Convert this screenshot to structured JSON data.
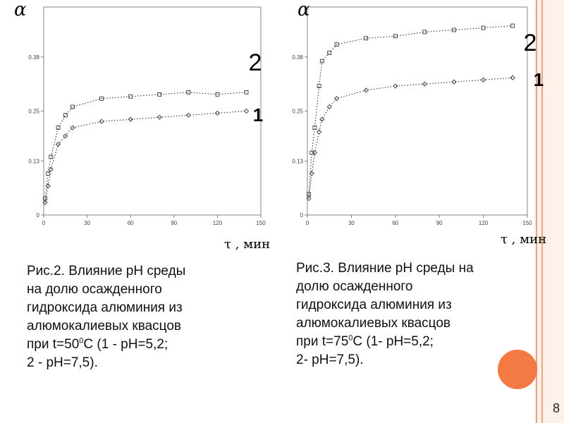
{
  "page": {
    "number": "8"
  },
  "charts": [
    {
      "y_symbol": "α",
      "x_label": "τ , мин",
      "y_ticks": [
        "0",
        "0.13",
        "0.25",
        "0.38"
      ],
      "x_ticks": [
        "0",
        "30",
        "60",
        "90",
        "120",
        "150"
      ],
      "curve_labels": [
        "2",
        "1"
      ]
    },
    {
      "y_symbol": "α",
      "x_label": "τ , мин",
      "y_ticks": [
        "0",
        "0.13",
        "0.25",
        "0.38"
      ],
      "x_ticks": [
        "0",
        "30",
        "60",
        "90",
        "120",
        "150"
      ],
      "curve_labels": [
        "2",
        "1"
      ]
    }
  ],
  "captions": [
    {
      "lines": [
        {
          "text": "Рис.2. Влияние рН среды"
        },
        {
          "text": "на долю осажденного"
        },
        {
          "text": "гидроксида алюминия из"
        },
        {
          "text": "алюмокалиевых квасцов"
        },
        {
          "pre": "при t=50",
          "sup": "0",
          "post": "С (1 - рН=5,2;"
        },
        {
          "text": "2 - рН=7,5)."
        }
      ]
    },
    {
      "lines": [
        {
          "text": "Рис.3. Влияние рН среды на"
        },
        {
          "text": "долю осажденного"
        },
        {
          "text": "гидроксида алюминия из"
        },
        {
          "text": "алюмокалиевых квасцов"
        },
        {
          "pre": "при t=75",
          "sup": "0",
          "post": "С (1- рН=5,2;"
        },
        {
          "text": "2- рН=7,5)."
        }
      ]
    }
  ],
  "chart_data": [
    {
      "type": "scatter",
      "x_label": "τ , мин",
      "y_label": "α",
      "xlim": [
        0,
        150
      ],
      "ylim": [
        0,
        0.5
      ],
      "x_ticks": [
        0,
        30,
        60,
        90,
        120,
        150
      ],
      "y_ticks": [
        0,
        0.13,
        0.25,
        0.38
      ],
      "grid": false,
      "series": [
        {
          "name": "2",
          "marker": "square",
          "x": [
            1,
            3,
            5,
            10,
            15,
            20,
            40,
            60,
            80,
            100,
            120,
            140
          ],
          "y": [
            0.04,
            0.1,
            0.14,
            0.21,
            0.24,
            0.26,
            0.28,
            0.285,
            0.29,
            0.295,
            0.29,
            0.295
          ]
        },
        {
          "name": "1",
          "marker": "diamond",
          "x": [
            1,
            3,
            5,
            10,
            15,
            20,
            40,
            60,
            80,
            100,
            120,
            140
          ],
          "y": [
            0.03,
            0.07,
            0.11,
            0.17,
            0.19,
            0.21,
            0.225,
            0.23,
            0.235,
            0.24,
            0.245,
            0.25
          ]
        }
      ]
    },
    {
      "type": "scatter",
      "x_label": "τ , мин",
      "y_label": "α",
      "xlim": [
        0,
        150
      ],
      "ylim": [
        0,
        0.5
      ],
      "x_ticks": [
        0,
        30,
        60,
        90,
        120,
        150
      ],
      "y_ticks": [
        0,
        0.13,
        0.25,
        0.38
      ],
      "grid": false,
      "series": [
        {
          "name": "2",
          "marker": "square",
          "x": [
            1,
            3,
            5,
            8,
            10,
            15,
            20,
            40,
            60,
            80,
            100,
            120,
            140
          ],
          "y": [
            0.05,
            0.15,
            0.21,
            0.31,
            0.37,
            0.39,
            0.41,
            0.425,
            0.43,
            0.44,
            0.445,
            0.45,
            0.455
          ]
        },
        {
          "name": "1",
          "marker": "diamond",
          "x": [
            1,
            3,
            5,
            8,
            10,
            15,
            20,
            40,
            60,
            80,
            100,
            120,
            140
          ],
          "y": [
            0.04,
            0.1,
            0.15,
            0.2,
            0.23,
            0.26,
            0.28,
            0.3,
            0.31,
            0.315,
            0.32,
            0.325,
            0.33
          ]
        }
      ]
    }
  ]
}
